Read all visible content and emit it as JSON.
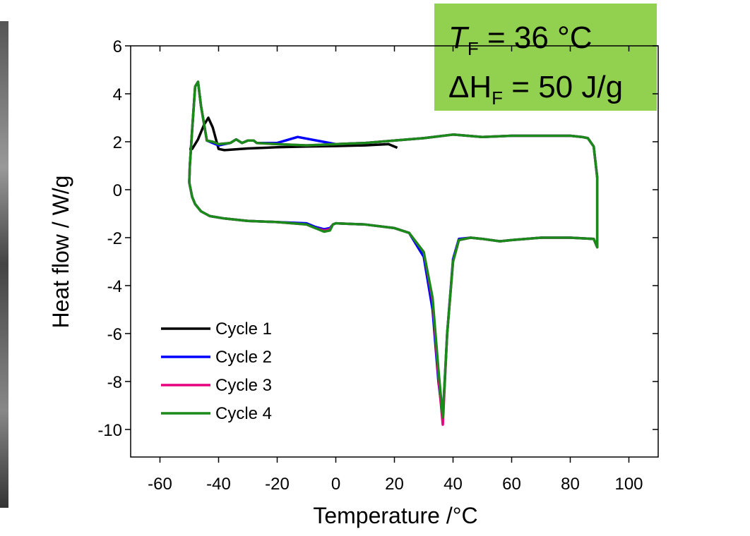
{
  "chart_data": {
    "type": "line",
    "xlabel": "Temperature /°C",
    "ylabel": "Heat flow / W/g",
    "annotation": [
      [
        "T",
        "F",
        " = 36 °C"
      ],
      [
        "ΔH",
        "F",
        " = 50 J/g"
      ]
    ],
    "xlim": [
      -70,
      110
    ],
    "ylim": [
      -11.15,
      6
    ],
    "xticks": [
      -60,
      -40,
      -20,
      0,
      20,
      40,
      60,
      80,
      100
    ],
    "yticks": [
      6,
      4,
      2,
      0,
      -2,
      -4,
      -6,
      -8,
      -10
    ],
    "grid": false,
    "legend": "lower left",
    "series": [
      {
        "name": "Cycle 1",
        "color": "#000000",
        "x": [
          21,
          18,
          10,
          0,
          -10,
          -20,
          -30,
          -38,
          -40,
          -42,
          -43.5,
          -45,
          -47,
          -49,
          -50
        ],
        "values": [
          1.75,
          1.9,
          1.85,
          1.82,
          1.8,
          1.77,
          1.72,
          1.65,
          1.7,
          2.6,
          3.0,
          2.7,
          2.1,
          1.7,
          1.7
        ]
      },
      {
        "name": "Cycle 2",
        "color": "#0000ff",
        "x": [
          -50,
          -49,
          -48,
          -46,
          -43,
          -38,
          -30,
          -20,
          -10,
          -7,
          -4,
          -2,
          -1,
          0,
          10,
          20,
          25,
          30,
          33,
          35,
          36.5,
          38,
          40,
          42,
          46,
          50,
          56,
          60,
          70,
          80,
          88,
          89.2,
          89.2,
          88,
          86,
          84,
          80,
          70,
          60,
          50,
          40,
          30,
          20,
          10,
          0,
          -13,
          -20,
          -27,
          -28,
          -30,
          -32,
          -34,
          -36,
          -40,
          -42,
          -44,
          -46,
          -47,
          -48,
          -49,
          -49.8,
          -50
        ],
        "values": [
          0.3,
          -0.3,
          -0.6,
          -0.9,
          -1.1,
          -1.2,
          -1.3,
          -1.35,
          -1.4,
          -1.55,
          -1.65,
          -1.6,
          -1.45,
          -1.4,
          -1.45,
          -1.6,
          -1.8,
          -2.8,
          -5,
          -8,
          -9.5,
          -6,
          -2.9,
          -2.05,
          -2.0,
          -2.05,
          -2.15,
          -2.1,
          -2.0,
          -2.0,
          -2.05,
          -2.4,
          0.5,
          1.8,
          2.15,
          2.2,
          2.25,
          2.25,
          2.25,
          2.2,
          2.3,
          2.15,
          2.05,
          1.95,
          1.9,
          2.2,
          1.95,
          1.95,
          2.05,
          2.05,
          1.95,
          2.1,
          1.95,
          1.85,
          1.95,
          2.05,
          3.5,
          4.5,
          4.3,
          2.5,
          1.0,
          0.3
        ]
      },
      {
        "name": "Cycle 3",
        "color": "#e6007e",
        "x": [
          -50,
          -49,
          -48,
          -46,
          -43,
          -38,
          -30,
          -20,
          -10,
          -7,
          -4,
          -2,
          -1,
          0,
          10,
          20,
          25,
          30,
          33,
          35,
          36.5,
          38,
          40,
          42,
          46,
          50,
          56,
          60,
          70,
          80,
          88,
          89.2,
          89.2,
          88,
          86,
          84,
          80,
          70,
          60,
          50,
          40,
          30,
          20,
          10,
          0,
          -10,
          -20,
          -27,
          -28,
          -30,
          -32,
          -34,
          -36,
          -40,
          -42,
          -44,
          -46,
          -47,
          -48,
          -49,
          -49.8,
          -50
        ],
        "values": [
          0.3,
          -0.3,
          -0.6,
          -0.9,
          -1.1,
          -1.2,
          -1.3,
          -1.35,
          -1.45,
          -1.6,
          -1.7,
          -1.65,
          -1.45,
          -1.4,
          -1.45,
          -1.6,
          -1.8,
          -2.6,
          -4.6,
          -7.8,
          -9.8,
          -6,
          -3,
          -2.1,
          -2.0,
          -2.05,
          -2.15,
          -2.1,
          -2.0,
          -2.0,
          -2.05,
          -2.4,
          0.5,
          1.8,
          2.15,
          2.2,
          2.25,
          2.25,
          2.25,
          2.2,
          2.3,
          2.15,
          2.05,
          1.95,
          1.9,
          1.85,
          1.9,
          1.95,
          2.05,
          2.05,
          1.95,
          2.1,
          1.95,
          1.9,
          2.0,
          2.05,
          3.5,
          4.5,
          4.3,
          2.5,
          1.0,
          0.3
        ]
      },
      {
        "name": "Cycle 4",
        "color": "#1a8a1a",
        "x": [
          -50,
          -49,
          -48,
          -46,
          -43,
          -38,
          -30,
          -20,
          -10,
          -7,
          -4,
          -2,
          -1,
          0,
          10,
          20,
          25,
          30,
          33,
          35,
          36.5,
          38,
          40,
          42,
          46,
          50,
          56,
          60,
          70,
          80,
          88,
          89.2,
          89.2,
          88,
          86,
          84,
          80,
          70,
          60,
          50,
          40,
          30,
          20,
          10,
          0,
          -10,
          -20,
          -27,
          -28,
          -30,
          -32,
          -34,
          -36,
          -40,
          -42,
          -44,
          -46,
          -47,
          -48,
          -49,
          -49.8,
          -50
        ],
        "values": [
          0.3,
          -0.3,
          -0.6,
          -0.9,
          -1.1,
          -1.2,
          -1.3,
          -1.35,
          -1.45,
          -1.6,
          -1.75,
          -1.7,
          -1.45,
          -1.4,
          -1.45,
          -1.6,
          -1.8,
          -2.6,
          -4.5,
          -7.5,
          -9.5,
          -6,
          -3,
          -2.1,
          -2.0,
          -2.05,
          -2.15,
          -2.1,
          -2.0,
          -2.0,
          -2.05,
          -2.4,
          0.5,
          1.8,
          2.15,
          2.2,
          2.25,
          2.25,
          2.25,
          2.2,
          2.3,
          2.15,
          2.05,
          1.95,
          1.9,
          1.85,
          1.9,
          1.95,
          2.05,
          2.05,
          1.95,
          2.1,
          1.95,
          1.9,
          2.0,
          2.05,
          3.5,
          4.5,
          4.3,
          2.5,
          1.0,
          0.3
        ]
      }
    ]
  }
}
